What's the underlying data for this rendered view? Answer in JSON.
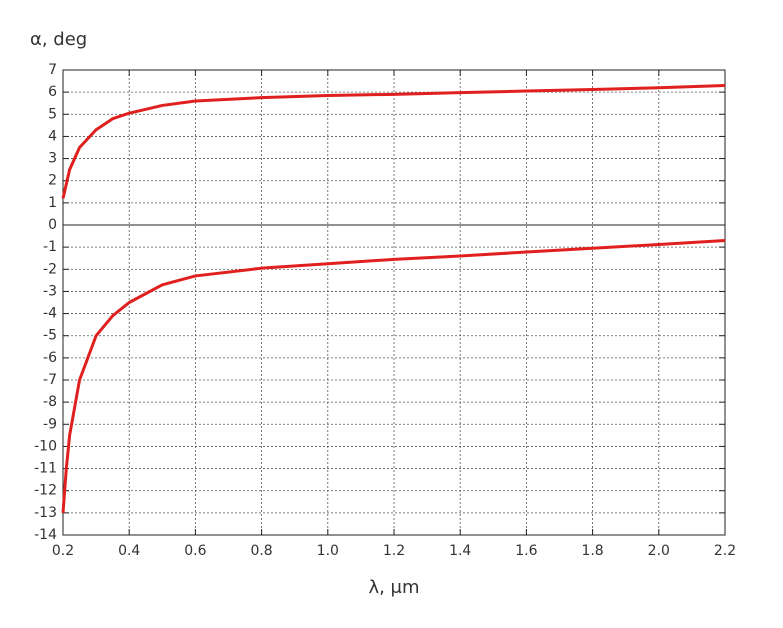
{
  "chart_data": {
    "type": "line",
    "y_label": "α, deg",
    "x_label": "λ, μm",
    "xlim": [
      0.2,
      2.2
    ],
    "xticks": [
      0.2,
      0.4,
      0.6,
      0.8,
      {
        "value": 1,
        "label": "1.0"
      },
      1.2,
      1.4,
      1.6,
      1.8,
      {
        "value": 2,
        "label": "2.0"
      },
      2.2
    ],
    "ylim": [
      -14,
      7
    ],
    "yticks": [
      -14,
      -13,
      -12,
      -11,
      -10,
      -9,
      -8,
      -7,
      -6,
      -5,
      -4,
      -3,
      -2,
      -1,
      0,
      1,
      2,
      3,
      4,
      5,
      6,
      7
    ],
    "grid": true,
    "series": [
      {
        "color": "#e0201e",
        "x": [
          0.2,
          0.22,
          0.25,
          0.3,
          0.35,
          0.4,
          0.5,
          0.6,
          0.8,
          1.0,
          1.2,
          1.4,
          1.6,
          1.8,
          2.0,
          2.2
        ],
        "values": [
          1.2,
          2.5,
          3.5,
          4.3,
          4.8,
          5.05,
          5.4,
          5.6,
          5.75,
          5.85,
          5.9,
          5.98,
          6.05,
          6.12,
          6.2,
          6.3
        ]
      },
      {
        "color": "#e0201e",
        "x": [
          0.2,
          0.21,
          0.22,
          0.25,
          0.3,
          0.35,
          0.4,
          0.5,
          0.6,
          0.8,
          1.0,
          1.2,
          1.4,
          1.6,
          1.8,
          2.0,
          2.2
        ],
        "values": [
          -13,
          -11,
          -9.5,
          -7,
          -5,
          -4.1,
          -3.5,
          -2.7,
          -2.3,
          -1.95,
          -1.75,
          -1.55,
          -1.4,
          -1.22,
          -1.05,
          -0.88,
          -0.7
        ]
      }
    ]
  }
}
